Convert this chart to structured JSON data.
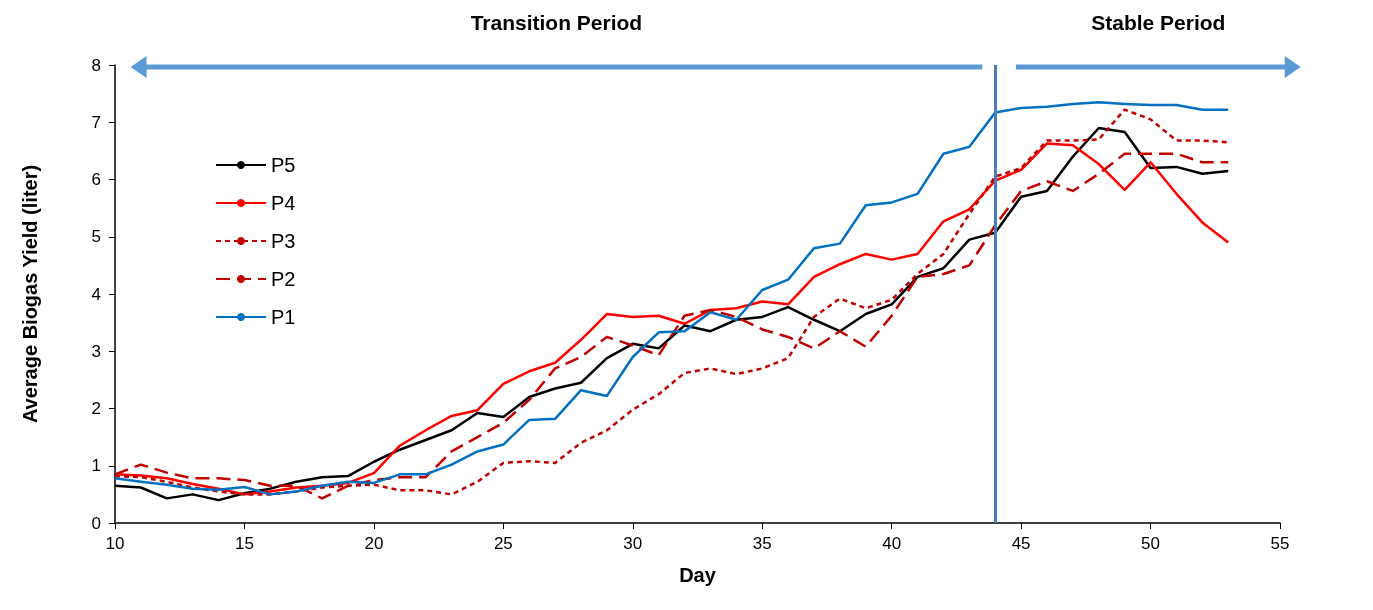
{
  "chart_data": {
    "type": "line",
    "xlabel": "Day",
    "ylabel": "Average Biogas Yield (liter)",
    "x": [
      10,
      11,
      12,
      13,
      14,
      15,
      16,
      17,
      18,
      19,
      20,
      21,
      22,
      23,
      24,
      25,
      26,
      27,
      28,
      29,
      30,
      31,
      32,
      33,
      34,
      35,
      36,
      37,
      38,
      39,
      40,
      41,
      42,
      43,
      44,
      45,
      46,
      47,
      48,
      49,
      50,
      51,
      52,
      53
    ],
    "series": [
      {
        "name": "P5",
        "color": "#000000",
        "line_style": "solid",
        "values": [
          0.65,
          0.62,
          0.43,
          0.5,
          0.4,
          0.52,
          0.6,
          0.72,
          0.8,
          0.82,
          1.07,
          1.28,
          1.45,
          1.62,
          1.92,
          1.85,
          2.2,
          2.35,
          2.45,
          2.88,
          3.13,
          3.05,
          3.45,
          3.35,
          3.55,
          3.6,
          3.77,
          3.55,
          3.35,
          3.65,
          3.82,
          4.3,
          4.45,
          4.95,
          5.07,
          5.7,
          5.8,
          6.4,
          6.9,
          6.83,
          6.2,
          6.22,
          6.1,
          6.15
        ]
      },
      {
        "name": "P4",
        "color": "#ff0000",
        "line_style": "solid",
        "values": [
          0.85,
          0.83,
          0.78,
          0.68,
          0.6,
          0.5,
          0.55,
          0.62,
          0.65,
          0.7,
          0.87,
          1.35,
          1.62,
          1.87,
          1.97,
          2.43,
          2.65,
          2.8,
          3.2,
          3.65,
          3.6,
          3.62,
          3.48,
          3.72,
          3.75,
          3.87,
          3.82,
          4.3,
          4.52,
          4.7,
          4.6,
          4.7,
          5.27,
          5.48,
          5.98,
          6.17,
          6.63,
          6.6,
          6.27,
          5.82,
          6.3,
          5.75,
          5.25,
          4.9
        ]
      },
      {
        "name": "P3",
        "color": "#c00000",
        "line_style": "dotted",
        "values": [
          0.82,
          0.8,
          0.72,
          0.62,
          0.55,
          0.5,
          0.5,
          0.55,
          0.62,
          0.65,
          0.67,
          0.57,
          0.57,
          0.5,
          0.72,
          1.05,
          1.08,
          1.05,
          1.4,
          1.62,
          1.98,
          2.25,
          2.62,
          2.7,
          2.6,
          2.7,
          2.88,
          3.6,
          3.92,
          3.75,
          3.9,
          4.35,
          4.7,
          5.4,
          6.05,
          6.2,
          6.68,
          6.68,
          6.7,
          7.22,
          7.05,
          6.68,
          6.68,
          6.65
        ]
      },
      {
        "name": "P2",
        "color": "#c00000",
        "line_style": "dashed",
        "values": [
          0.85,
          1.02,
          0.88,
          0.78,
          0.78,
          0.75,
          0.65,
          0.65,
          0.43,
          0.65,
          0.75,
          0.8,
          0.8,
          1.25,
          1.5,
          1.75,
          2.15,
          2.7,
          2.9,
          3.25,
          3.1,
          2.93,
          3.62,
          3.72,
          3.6,
          3.38,
          3.25,
          3.05,
          3.35,
          3.08,
          3.62,
          4.3,
          4.35,
          4.5,
          5.2,
          5.8,
          5.97,
          5.8,
          6.1,
          6.45,
          6.45,
          6.45,
          6.3,
          6.3
        ]
      },
      {
        "name": "P1",
        "color": "#0070c0",
        "line_style": "solid",
        "values": [
          0.78,
          0.72,
          0.67,
          0.6,
          0.58,
          0.63,
          0.5,
          0.55,
          0.65,
          0.72,
          0.7,
          0.85,
          0.85,
          1.02,
          1.25,
          1.37,
          1.8,
          1.82,
          2.32,
          2.22,
          2.9,
          3.33,
          3.35,
          3.68,
          3.55,
          4.07,
          4.25,
          4.8,
          4.88,
          5.55,
          5.6,
          5.75,
          6.45,
          6.57,
          7.17,
          7.25,
          7.27,
          7.32,
          7.35,
          7.32,
          7.3,
          7.3,
          7.22,
          7.22
        ]
      }
    ],
    "xlim": [
      10,
      55
    ],
    "xticks": [
      10,
      15,
      20,
      25,
      30,
      35,
      40,
      45,
      50,
      55
    ],
    "ylim": [
      0,
      8
    ],
    "yticks": [
      0,
      1,
      2,
      3,
      4,
      5,
      6,
      7,
      8
    ],
    "grid": false,
    "legend": "top left",
    "marker": "none",
    "ref_lines": [
      {
        "axis": "x",
        "value": 44,
        "color": "#4a7ebb"
      }
    ],
    "annotations": [
      "Transition Period",
      "Stable Period"
    ]
  }
}
